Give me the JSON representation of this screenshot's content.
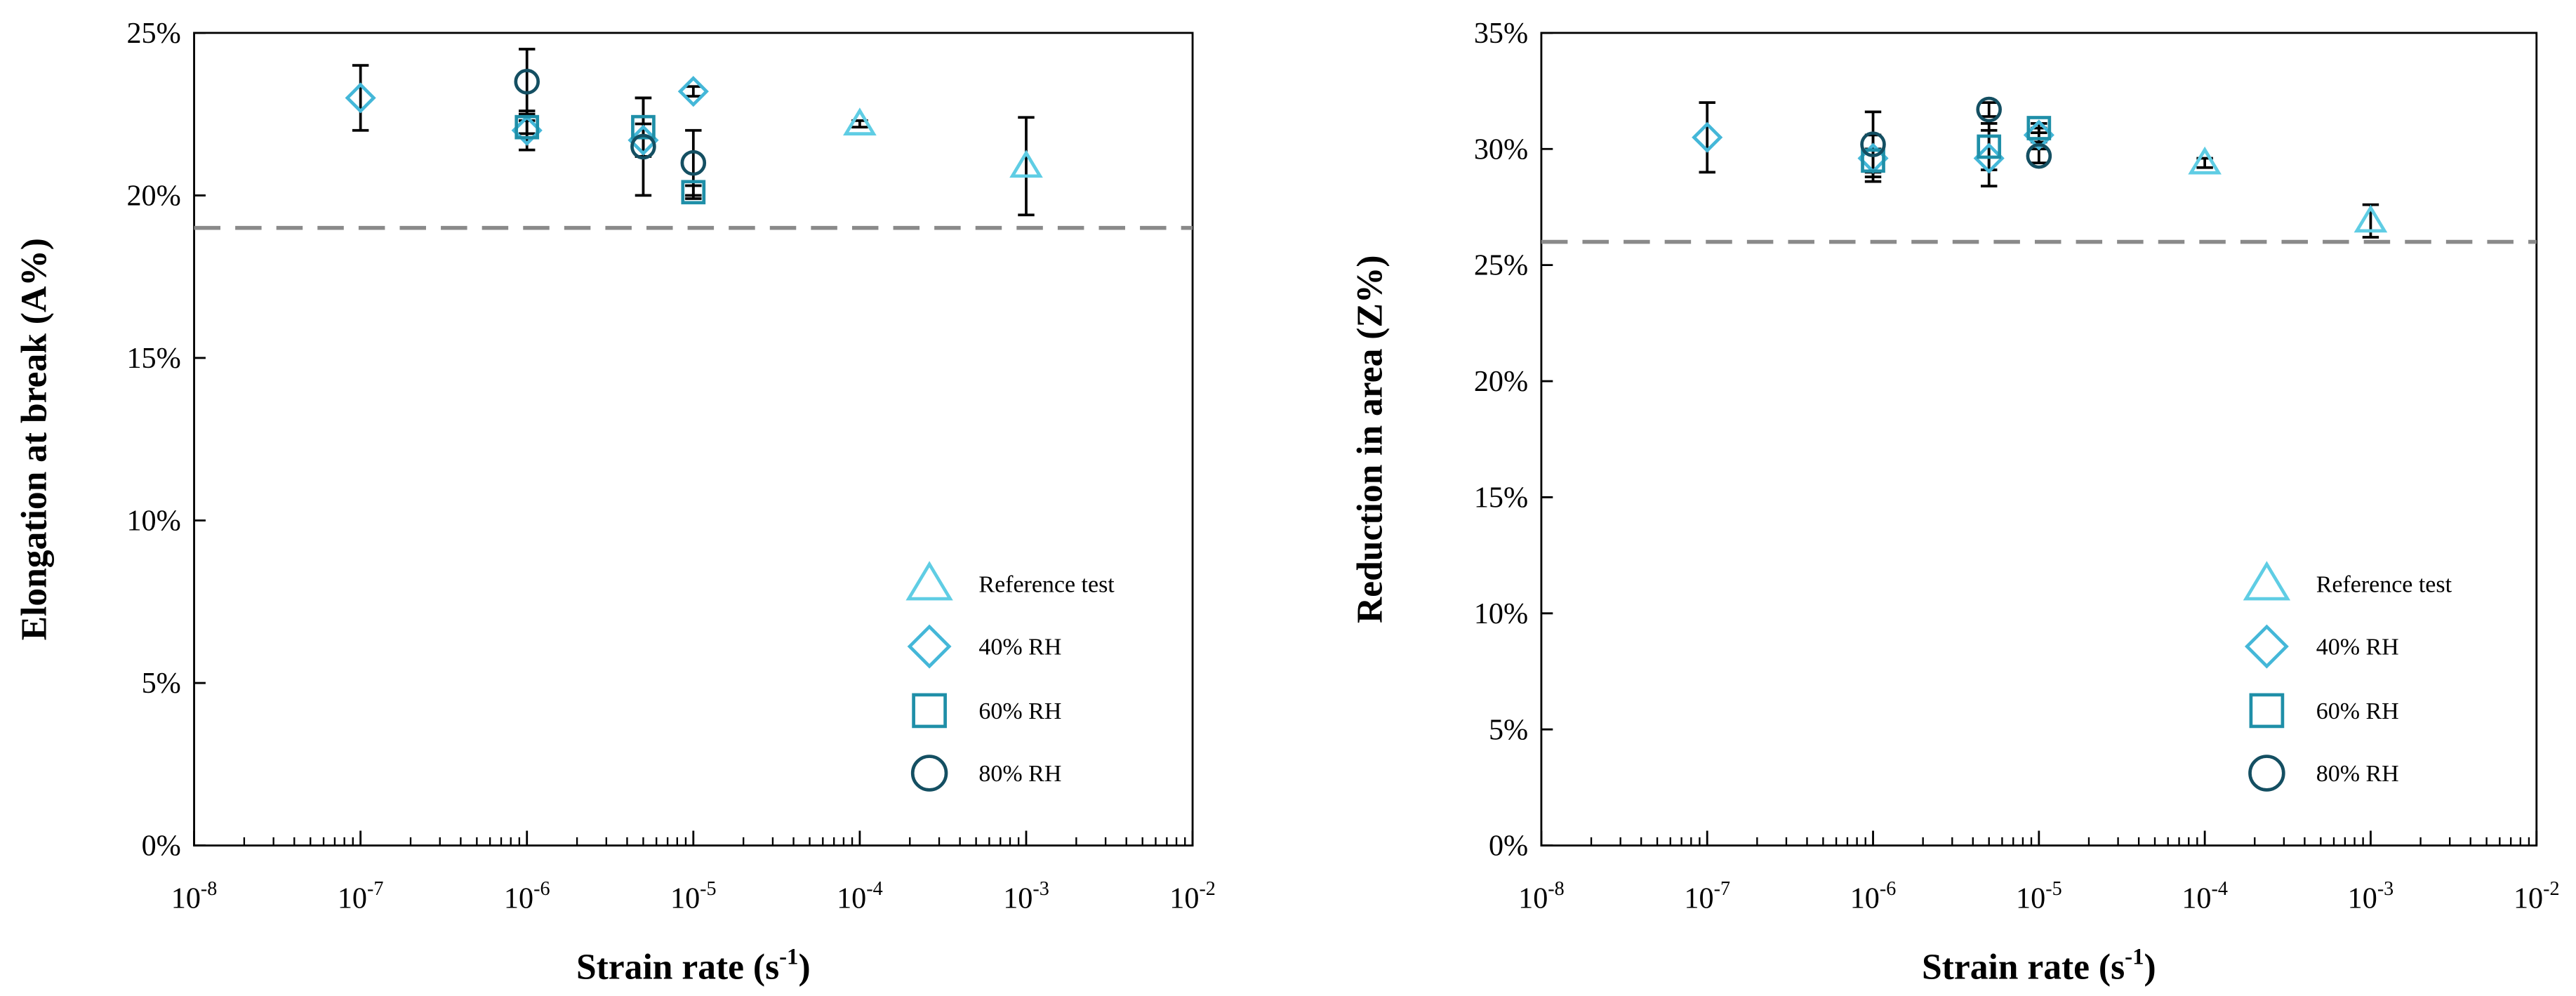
{
  "colors": {
    "reference": "#5fcde4",
    "rh40": "#44b7d8",
    "rh60": "#1f8fa8",
    "rh80": "#144f62",
    "threshold_line": "#8a8a8a",
    "axis": "#000000",
    "error_bar": "#000000"
  },
  "legend_labels": [
    "Reference test",
    "40% RH",
    "60% RH",
    "80% RH"
  ],
  "chart_data": [
    {
      "type": "scatter",
      "xlabel": "Strain rate (s-1)",
      "xlabel_base": "Strain rate (s",
      "xlabel_sup": "-1",
      "xlabel_end": ")",
      "ylabel": "Elongation at break (A%)",
      "x_scale": "log",
      "xlim": [
        1e-08,
        0.01
      ],
      "ylim": [
        0,
        25
      ],
      "y_unit": "%",
      "x_tick_exponents": [
        -8,
        -7,
        -6,
        -5,
        -4,
        -3,
        -2
      ],
      "y_ticks": [
        0,
        5,
        10,
        15,
        20,
        25
      ],
      "y_tick_labels": [
        "0%",
        "5%",
        "10%",
        "15%",
        "20%",
        "25%"
      ],
      "grid": false,
      "legend_position": "bottom-right",
      "threshold": 19,
      "series": [
        {
          "name": "Reference test",
          "marker": "triangle",
          "points": [
            {
              "x": 0.0001,
              "y": 22.2,
              "err": 0.1
            },
            {
              "x": 0.001,
              "y": 20.9,
              "err": 1.5
            }
          ]
        },
        {
          "name": "40% RH",
          "marker": "diamond",
          "points": [
            {
              "x": 1e-07,
              "y": 23.0,
              "err": 1.0
            },
            {
              "x": 1e-06,
              "y": 22.0,
              "err": 0.6
            },
            {
              "x": 5e-06,
              "y": 21.7,
              "err": 0.5
            },
            {
              "x": 1e-05,
              "y": 23.2,
              "err": 0.15
            }
          ]
        },
        {
          "name": "60% RH",
          "marker": "square",
          "points": [
            {
              "x": 1e-06,
              "y": 22.1,
              "err": 0.2
            },
            {
              "x": 5e-06,
              "y": 22.1,
              "err": 0.9
            },
            {
              "x": 1e-05,
              "y": 20.1,
              "err": 0.2
            }
          ]
        },
        {
          "name": "80% RH",
          "marker": "circle",
          "points": [
            {
              "x": 1e-06,
              "y": 23.5,
              "err": 1.0
            },
            {
              "x": 5e-06,
              "y": 21.5,
              "err": 1.5
            },
            {
              "x": 1e-05,
              "y": 21.0,
              "err": 1.0
            }
          ]
        }
      ]
    },
    {
      "type": "scatter",
      "xlabel": "Strain rate (s-1)",
      "xlabel_base": "Strain rate (s",
      "xlabel_sup": "-1",
      "xlabel_end": ")",
      "ylabel": "Reduction in area (Z%)",
      "x_scale": "log",
      "xlim": [
        1e-08,
        0.01
      ],
      "ylim": [
        0,
        35
      ],
      "y_unit": "%",
      "x_tick_exponents": [
        -8,
        -7,
        -6,
        -5,
        -4,
        -3,
        -2
      ],
      "y_ticks": [
        0,
        5,
        10,
        15,
        20,
        25,
        30,
        35
      ],
      "y_tick_labels": [
        "0%",
        "5%",
        "10%",
        "15%",
        "20%",
        "25%",
        "30%",
        "35%"
      ],
      "grid": false,
      "legend_position": "bottom-right",
      "threshold": 26,
      "series": [
        {
          "name": "Reference test",
          "marker": "triangle",
          "points": [
            {
              "x": 0.0001,
              "y": 29.4,
              "err": 0.2
            },
            {
              "x": 0.001,
              "y": 26.9,
              "err": 0.7
            }
          ]
        },
        {
          "name": "40% RH",
          "marker": "diamond",
          "points": [
            {
              "x": 1e-07,
              "y": 30.5,
              "err": 1.5
            },
            {
              "x": 1e-06,
              "y": 29.6,
              "err": 1.0
            },
            {
              "x": 5e-06,
              "y": 29.6,
              "err": 1.2
            },
            {
              "x": 1e-05,
              "y": 30.6,
              "err": 0.3
            }
          ]
        },
        {
          "name": "60% RH",
          "marker": "square",
          "points": [
            {
              "x": 1e-06,
              "y": 29.5,
              "err": 0.5
            },
            {
              "x": 5e-06,
              "y": 30.1,
              "err": 1.0
            },
            {
              "x": 1e-05,
              "y": 30.9,
              "err": 0.2
            }
          ]
        },
        {
          "name": "80% RH",
          "marker": "circle",
          "points": [
            {
              "x": 1e-06,
              "y": 30.2,
              "err": 1.4
            },
            {
              "x": 5e-06,
              "y": 31.7,
              "err": 0.3
            },
            {
              "x": 1e-05,
              "y": 29.7,
              "err": 0.3
            }
          ]
        }
      ]
    }
  ]
}
